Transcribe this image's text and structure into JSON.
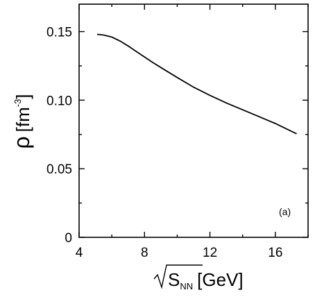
{
  "chart_data": {
    "type": "line",
    "title": "",
    "panel_label": "(a)",
    "xlabel": {
      "main": "S",
      "subscript": "NN",
      "unit": "[GeV]"
    },
    "ylabel": {
      "main": "ρ",
      "unit_prefix": "[fm",
      "superscript": "-3",
      "unit_suffix": "]"
    },
    "xlim": [
      4,
      18
    ],
    "ylim": [
      0,
      0.17
    ],
    "x_ticks": [
      4,
      8,
      12,
      16
    ],
    "x_tick_labels": [
      "4",
      "8",
      "12",
      "16"
    ],
    "y_ticks": [
      0,
      0.05,
      0.1,
      0.15
    ],
    "y_tick_labels": [
      "0",
      "0.05",
      "0.10",
      "0.15"
    ],
    "grid": false,
    "series": [
      {
        "x": [
          5.1,
          5.5,
          6.0,
          6.5,
          7.0,
          7.5,
          8.0,
          8.5,
          9.0,
          10.0,
          11.0,
          12.0,
          13.0,
          14.0,
          15.0,
          16.0,
          17.3
        ],
        "y": [
          0.148,
          0.1475,
          0.146,
          0.1432,
          0.1395,
          0.1355,
          0.1315,
          0.1275,
          0.1238,
          0.1165,
          0.1095,
          0.1035,
          0.098,
          0.093,
          0.088,
          0.083,
          0.0755
        ]
      }
    ]
  }
}
